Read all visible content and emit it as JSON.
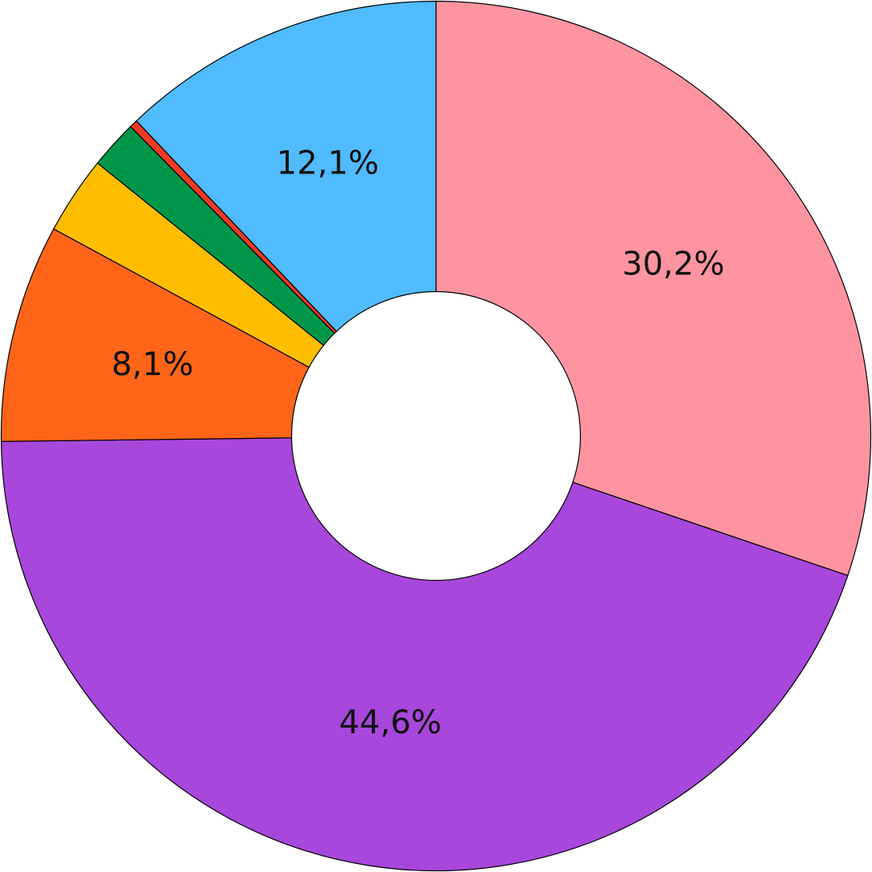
{
  "chart_data": {
    "type": "donut",
    "values": [
      30.2,
      44.6,
      8.1,
      2.9,
      1.8,
      0.3,
      12.1
    ],
    "value_labels": [
      "30,2%",
      "44,6%",
      "8,1%",
      null,
      null,
      null,
      "12,1%"
    ],
    "colors": [
      "#ff94a1",
      "#a847dc",
      "#ff6519",
      "#ffbd00",
      "#00964a",
      "#ee3a24",
      "#50bbff"
    ]
  }
}
